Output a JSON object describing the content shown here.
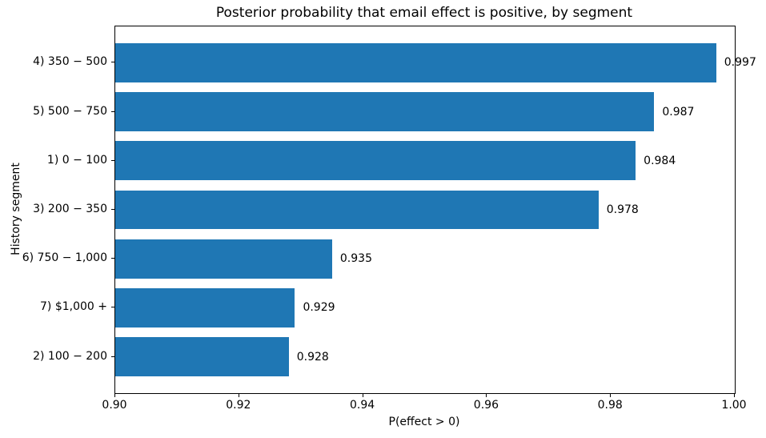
{
  "chart_data": {
    "type": "bar",
    "orientation": "horizontal",
    "title": "Posterior probability that email effect is positive, by segment",
    "xlabel": "P(effect > 0)",
    "ylabel": "History segment",
    "categories": [
      "4) 350 − 500",
      "5) 500 − 750",
      "1) 0 − 100",
      "3) 200 − 350",
      "6) 750 − 1,000",
      "7) $1,000 +",
      "2) 100 − 200"
    ],
    "values": [
      0.997,
      0.987,
      0.984,
      0.978,
      0.935,
      0.929,
      0.928
    ],
    "value_labels": [
      "0.997",
      "0.987",
      "0.984",
      "0.978",
      "0.935",
      "0.929",
      "0.928"
    ],
    "xlim": [
      0.9,
      1.0
    ],
    "xticks": [
      0.9,
      0.92,
      0.94,
      0.96,
      0.98,
      1.0
    ],
    "xtick_labels": [
      "0.90",
      "0.92",
      "0.94",
      "0.96",
      "0.98",
      "1.00"
    ],
    "bar_color": "#1f77b4",
    "grid": false,
    "legend": "none"
  }
}
